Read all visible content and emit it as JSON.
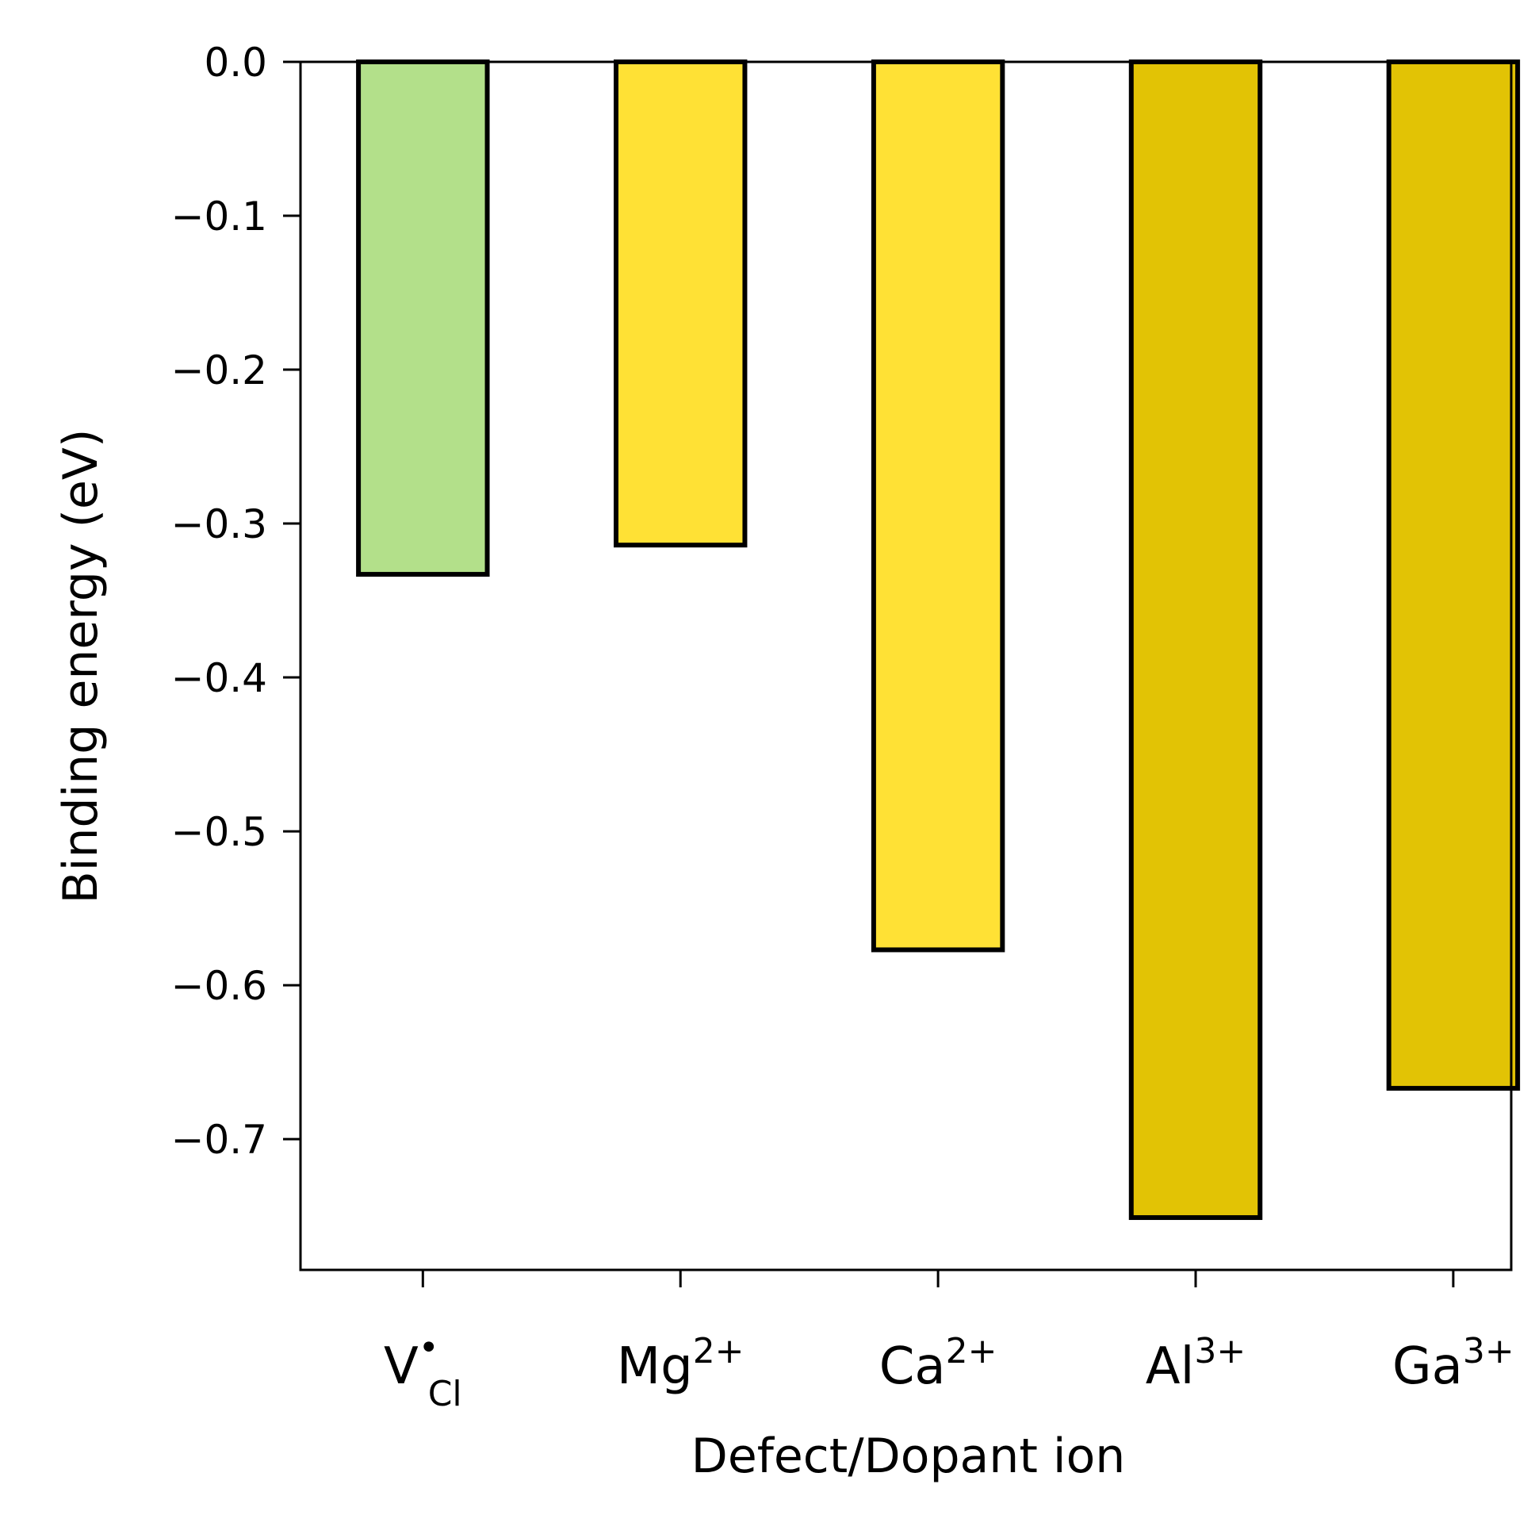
{
  "chart_data": {
    "type": "bar",
    "xlabel": "Defect/Dopant ion",
    "ylabel": "Binding energy (eV)",
    "ylim": [
      -0.785,
      0.0
    ],
    "yticks": [
      0.0,
      -0.1,
      -0.2,
      -0.3,
      -0.4,
      -0.5,
      -0.6,
      -0.7
    ],
    "ytick_labels": [
      "0.0",
      "−0.1",
      "−0.2",
      "−0.3",
      "−0.4",
      "−0.5",
      "−0.6",
      "−0.7"
    ],
    "grid": false,
    "categories": [
      {
        "base": "V",
        "sup": "•",
        "sub": "Cl"
      },
      {
        "base": "Mg",
        "sup": "2+",
        "sub": ""
      },
      {
        "base": "Ca",
        "sup": "2+",
        "sub": ""
      },
      {
        "base": "Al",
        "sup": "3+",
        "sub": ""
      },
      {
        "base": "Ga",
        "sup": "3+",
        "sub": ""
      }
    ],
    "values": [
      -0.333,
      -0.314,
      -0.577,
      -0.751,
      -0.667
    ],
    "colors": [
      "#b3e08a",
      "#ffe135",
      "#ffe135",
      "#e2c305",
      "#e2c305"
    ],
    "edge_color": "#000000"
  }
}
